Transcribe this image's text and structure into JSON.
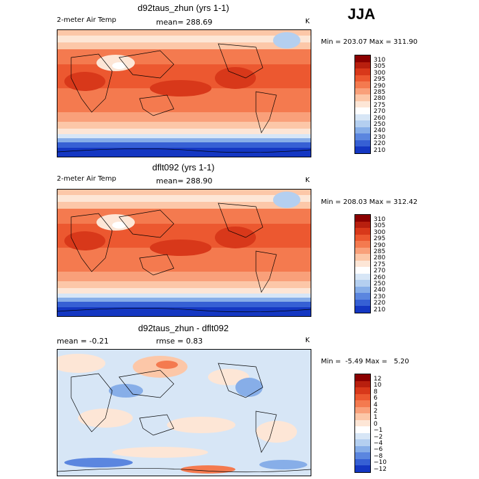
{
  "season": "JJA",
  "panels": [
    {
      "title": "d92taus_zhun (yrs 1-1)",
      "left_label": "2-meter Air Temp",
      "mean_label": "mean= 288.69",
      "units": "K",
      "minmax": "Min = 203.07 Max = 311.90",
      "colorbar_labels": [
        "310",
        "305",
        "300",
        "295",
        "290",
        "285",
        "280",
        "275",
        "270",
        "260",
        "250",
        "240",
        "230",
        "220",
        "210"
      ]
    },
    {
      "title": "dflt092 (yrs 1-1)",
      "left_label": "2-meter Air Temp",
      "mean_label": "mean= 288.90",
      "units": "K",
      "minmax": "Min = 208.03 Max = 312.42",
      "colorbar_labels": [
        "310",
        "305",
        "300",
        "295",
        "290",
        "285",
        "280",
        "275",
        "270",
        "260",
        "250",
        "240",
        "230",
        "220",
        "210"
      ]
    },
    {
      "title": "d92taus_zhun - dflt092",
      "left_label": "mean =   -0.21",
      "mean_label": "rmse =    0.83",
      "units": "K",
      "minmax": "Min =  -5.49 Max =   5.20",
      "colorbar_labels": [
        "12",
        "10",
        "8",
        "6",
        "4",
        "2",
        "1",
        "0",
        "−1",
        "−2",
        "−4",
        "−6",
        "−8",
        "−10",
        "−12"
      ]
    }
  ],
  "colors": {
    "temp_scale": [
      "#8b0000",
      "#b81f0e",
      "#d8381a",
      "#ec5830",
      "#f47a4f",
      "#f9a07a",
      "#fcc7a8",
      "#fde6d6",
      "#ffffff",
      "#d7e6f6",
      "#b4cff0",
      "#87aee8",
      "#5b86df",
      "#3660d4",
      "#1437c2",
      "#0010a0"
    ],
    "diff_scale": [
      "#8b0000",
      "#b81f0e",
      "#d8381a",
      "#ec5830",
      "#f47a4f",
      "#f9a07a",
      "#fcc7a8",
      "#fde6d6",
      "#ffffff",
      "#d7e6f6",
      "#b4cff0",
      "#87aee8",
      "#5b86df",
      "#3660d4",
      "#1437c2",
      "#0010a0"
    ]
  }
}
